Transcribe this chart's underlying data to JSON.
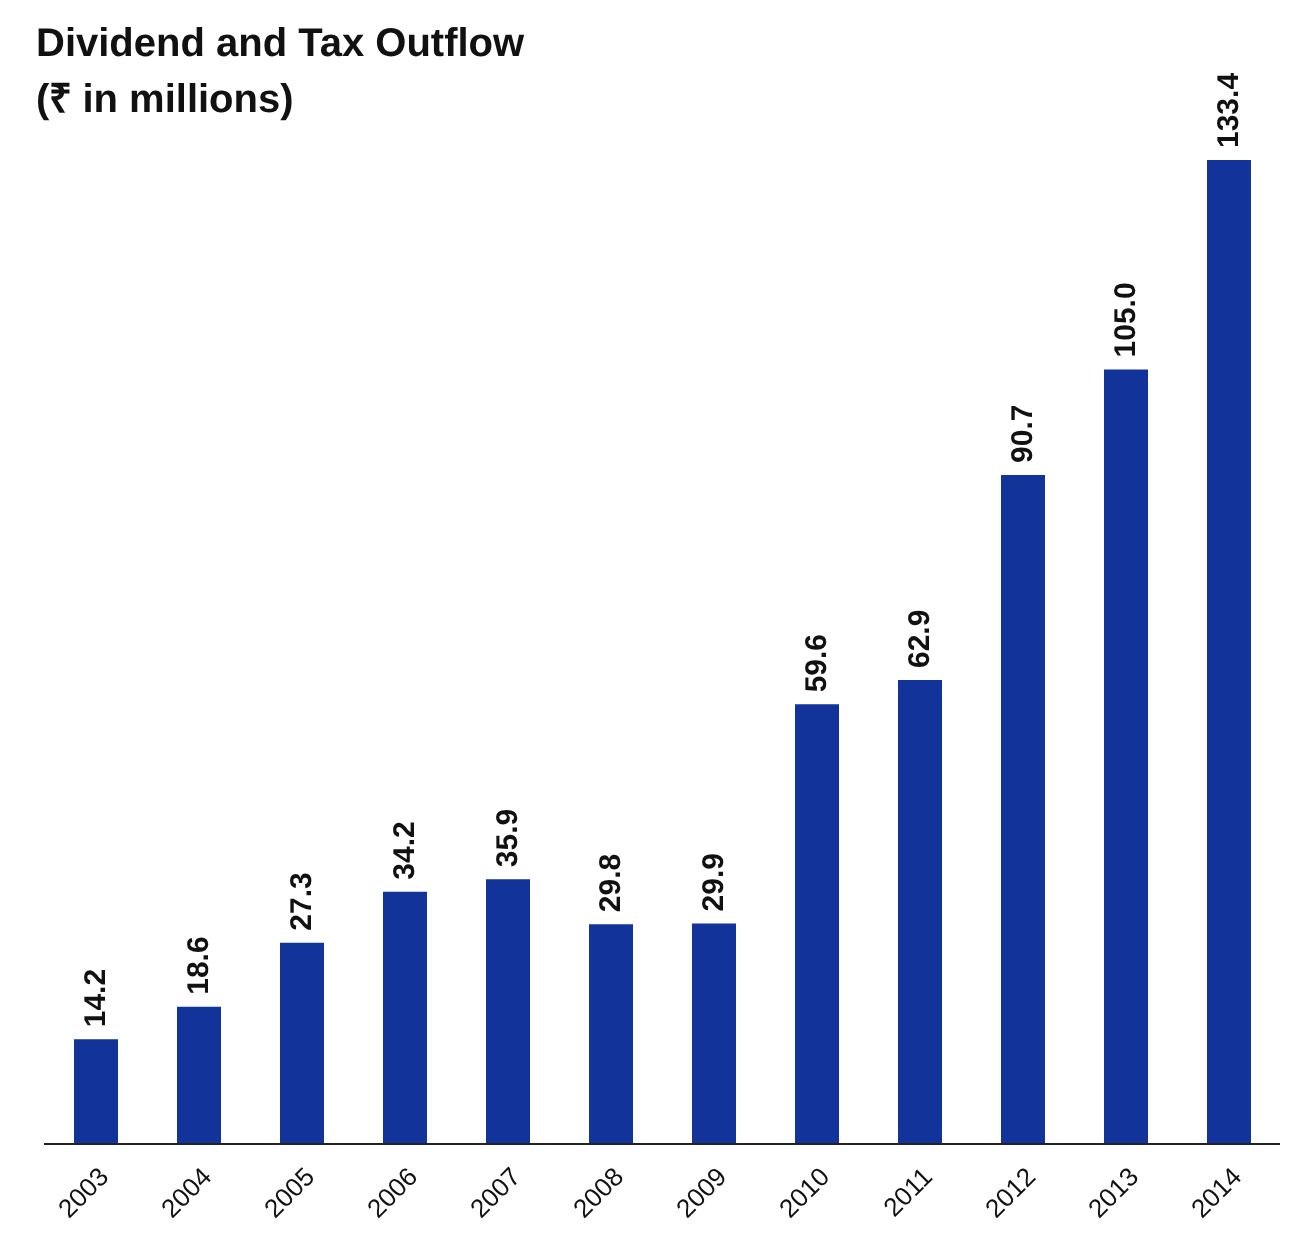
{
  "chart_data": {
    "type": "bar",
    "title": "Dividend and Tax Outflow",
    "subtitle": "(₹ in millions)",
    "categories": [
      "2003",
      "2004",
      "2005",
      "2006",
      "2007",
      "2008",
      "2009",
      "2010",
      "2011",
      "2012",
      "2013",
      "2014"
    ],
    "values": [
      14.2,
      18.6,
      27.3,
      34.2,
      35.9,
      29.8,
      29.9,
      59.6,
      62.9,
      90.7,
      105.0,
      133.4
    ],
    "value_labels": [
      "14.2",
      "18.6",
      "27.3",
      "34.2",
      "35.9",
      "29.8",
      "29.9",
      "59.6",
      "62.9",
      "90.7",
      "105.0",
      "133.4"
    ],
    "color": "#123399",
    "tick_labels": "x",
    "grid": false,
    "legend": false
  }
}
